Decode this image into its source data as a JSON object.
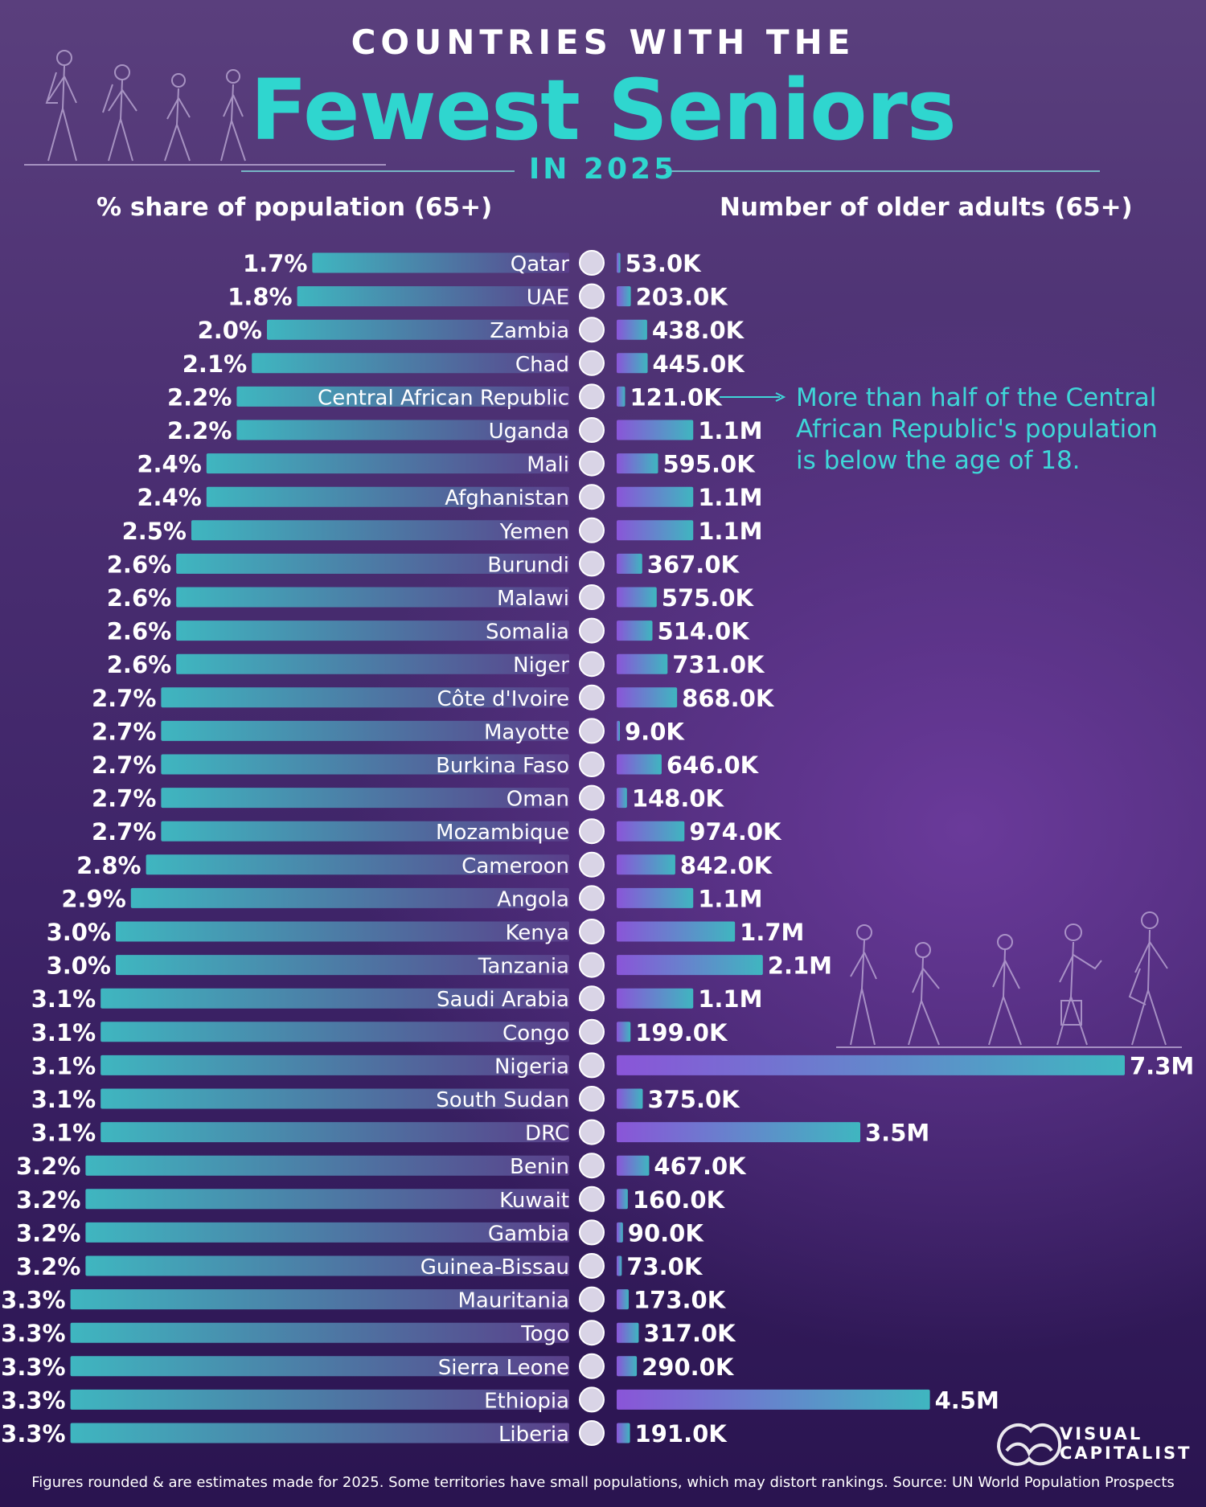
{
  "header": {
    "supertitle": "COUNTRIES WITH THE",
    "title": "Fewest Seniors",
    "subtitle": "IN 2025",
    "left_axis_title": "% share of population (65+)",
    "right_axis_title": "Number of older adults (65+)"
  },
  "annotation": {
    "target": "Central African Republic",
    "text": "More than half of the Central African Republic's population is below the age of 18."
  },
  "footer": {
    "note": "Figures rounded & are estimates made for 2025. Some territories have small populations, which may distort rankings. Source: UN World Population Prospects"
  },
  "logo": {
    "line1": "VISUAL",
    "line2": "CAPITALIST"
  },
  "colors": {
    "background_top": "#5a3f7d",
    "background_bottom": "#2a1450",
    "accent_teal": "#2fd6cf",
    "bar_left_start": "#3fb6c0",
    "bar_left_end": "#5a3f8a",
    "bar_right_start": "#8a55d8",
    "bar_right_end": "#3fb6c0",
    "text": "#ffffff"
  },
  "chart_data": {
    "type": "bar",
    "title": "Countries with the Fewest Seniors in 2025",
    "categories": [
      "Qatar",
      "UAE",
      "Zambia",
      "Chad",
      "Central African Republic",
      "Uganda",
      "Mali",
      "Afghanistan",
      "Yemen",
      "Burundi",
      "Malawi",
      "Somalia",
      "Niger",
      "Côte d'Ivoire",
      "Mayotte",
      "Burkina Faso",
      "Oman",
      "Mozambique",
      "Cameroon",
      "Angola",
      "Kenya",
      "Tanzania",
      "Saudi Arabia",
      "Congo",
      "Nigeria",
      "South Sudan",
      "DRC",
      "Benin",
      "Kuwait",
      "Gambia",
      "Guinea-Bissau",
      "Mauritania",
      "Togo",
      "Sierra Leone",
      "Ethiopia",
      "Liberia"
    ],
    "series": [
      {
        "name": "% share of population (65+)",
        "values": [
          1.7,
          1.8,
          2.0,
          2.1,
          2.2,
          2.2,
          2.4,
          2.4,
          2.5,
          2.6,
          2.6,
          2.6,
          2.6,
          2.7,
          2.7,
          2.7,
          2.7,
          2.7,
          2.8,
          2.9,
          3.0,
          3.0,
          3.1,
          3.1,
          3.1,
          3.1,
          3.1,
          3.2,
          3.2,
          3.2,
          3.2,
          3.3,
          3.3,
          3.3,
          3.3,
          3.3
        ],
        "labels": [
          "1.7%",
          "1.8%",
          "2.0%",
          "2.1%",
          "2.2%",
          "2.2%",
          "2.4%",
          "2.4%",
          "2.5%",
          "2.6%",
          "2.6%",
          "2.6%",
          "2.6%",
          "2.7%",
          "2.7%",
          "2.7%",
          "2.7%",
          "2.7%",
          "2.8%",
          "2.9%",
          "3.0%",
          "3.0%",
          "3.1%",
          "3.1%",
          "3.1%",
          "3.1%",
          "3.1%",
          "3.2%",
          "3.2%",
          "3.2%",
          "3.2%",
          "3.3%",
          "3.3%",
          "3.3%",
          "3.3%",
          "3.3%"
        ]
      },
      {
        "name": "Number of older adults (65+)",
        "values": [
          53000,
          203000,
          438000,
          445000,
          121000,
          1100000,
          595000,
          1100000,
          1100000,
          367000,
          575000,
          514000,
          731000,
          868000,
          9000,
          646000,
          148000,
          974000,
          842000,
          1100000,
          1700000,
          2100000,
          1100000,
          199000,
          7300000,
          375000,
          3500000,
          467000,
          160000,
          90000,
          73000,
          173000,
          317000,
          290000,
          4500000,
          191000
        ],
        "labels": [
          "53.0K",
          "203.0K",
          "438.0K",
          "445.0K",
          "121.0K",
          "1.1M",
          "595.0K",
          "1.1M",
          "1.1M",
          "367.0K",
          "575.0K",
          "514.0K",
          "731.0K",
          "868.0K",
          "9.0K",
          "646.0K",
          "148.0K",
          "974.0K",
          "842.0K",
          "1.1M",
          "1.7M",
          "2.1M",
          "1.1M",
          "199.0K",
          "7.3M",
          "375.0K",
          "3.5M",
          "467.0K",
          "160.0K",
          "90.0K",
          "73.0K",
          "173.0K",
          "317.0K",
          "290.0K",
          "4.5M",
          "191.0K"
        ]
      }
    ],
    "xlabel_left": "% share of population (65+)",
    "xlabel_right": "Number of older adults (65+)",
    "xlim_left": [
      0,
      3.3
    ],
    "xlim_right": [
      0,
      7300000
    ]
  }
}
